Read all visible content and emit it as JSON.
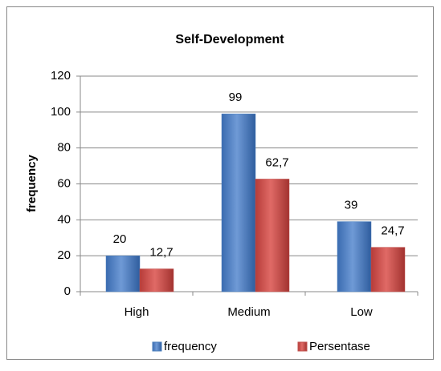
{
  "chart_data": {
    "type": "bar",
    "title": "Self-Development",
    "y_label": "frequency",
    "categories": [
      "High",
      "Medium",
      "Low"
    ],
    "series": [
      {
        "name": "frequency",
        "color": "#4a7ebb",
        "values": [
          20,
          99,
          39
        ]
      },
      {
        "name": "Persentase",
        "color": "#c0504d",
        "values": [
          12.7,
          62.7,
          24.7
        ],
        "value_labels": [
          "12,7",
          "62,7",
          "24,7"
        ]
      }
    ],
    "ylim": [
      0,
      120
    ],
    "yticks": [
      0,
      20,
      40,
      60,
      80,
      100,
      120
    ],
    "grid": true,
    "legend": "bottom"
  }
}
